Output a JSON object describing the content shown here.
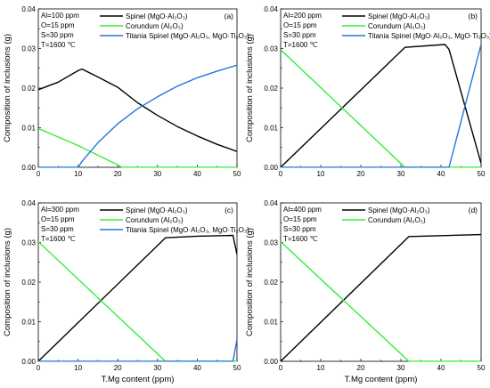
{
  "figure": {
    "xlabel": "T.Mg content (ppm)",
    "ylabel": "Composition of inclusions (g)"
  },
  "chart_data": [
    {
      "type": "line",
      "panel_label": "(a)",
      "conditions": [
        "Al=100 ppm",
        "O=15 ppm",
        "S=30 ppm",
        "T=1600 ℃"
      ],
      "xlim": [
        0,
        50
      ],
      "ylim": [
        0,
        0.04
      ],
      "xticks": [
        0,
        10,
        20,
        30,
        40,
        50
      ],
      "yticks": [
        0.0,
        0.01,
        0.02,
        0.03,
        0.04
      ],
      "ytick_labels": [
        "0.00",
        "0.01",
        "0.02",
        "0.03",
        "0.04"
      ],
      "xlabel": "",
      "ylabel": "Composition of inclusions (g)",
      "legend_position": "top-center",
      "series": [
        {
          "name": "Spinel (MgO·Al₂O₃)",
          "color": "#000000",
          "x": [
            0,
            5,
            10,
            11,
            15,
            20,
            25,
            30,
            35,
            40,
            45,
            50
          ],
          "y": [
            0.0196,
            0.0215,
            0.0244,
            0.0248,
            0.0228,
            0.0202,
            0.0163,
            0.0131,
            0.0103,
            0.0079,
            0.0058,
            0.004
          ]
        },
        {
          "name": "Corundum (Al₂O₃)",
          "color": "#33ee33",
          "x": [
            0,
            10,
            20,
            21,
            50
          ],
          "y": [
            0.0098,
            0.0055,
            0.0006,
            0.0,
            0.0
          ]
        },
        {
          "name": "Titania Spinel (MgO·Al₂O₃, MgO·Ti₂O₃)",
          "color": "#2277dd",
          "x": [
            0,
            10,
            11,
            15,
            20,
            25,
            30,
            35,
            40,
            45,
            50
          ],
          "y": [
            0.0,
            0.0,
            0.0015,
            0.0062,
            0.011,
            0.0148,
            0.0178,
            0.0205,
            0.0226,
            0.0243,
            0.0258
          ]
        }
      ]
    },
    {
      "type": "line",
      "panel_label": "(b)",
      "conditions": [
        "Al=200 ppm",
        "O=15 ppm",
        "S=30 ppm",
        "T=1600 ℃"
      ],
      "xlim": [
        0,
        50
      ],
      "ylim": [
        0,
        0.04
      ],
      "xticks": [
        0,
        10,
        20,
        30,
        40,
        50
      ],
      "yticks": [
        0.0,
        0.01,
        0.02,
        0.03,
        0.04
      ],
      "ytick_labels": [
        "0.00",
        "0.01",
        "0.02",
        "0.03",
        "0.04"
      ],
      "xlabel": "",
      "ylabel": "Composition of inclusions (g)",
      "legend_position": "top-center",
      "series": [
        {
          "name": "Spinel (MgO·Al₂O₃)",
          "color": "#000000",
          "x": [
            0,
            31,
            41,
            42,
            50
          ],
          "y": [
            0.0,
            0.0303,
            0.031,
            0.0298,
            0.001
          ]
        },
        {
          "name": "Corundum (Al₂O₃)",
          "color": "#33ee33",
          "x": [
            0,
            31,
            50
          ],
          "y": [
            0.0297,
            0.0,
            0.0
          ]
        },
        {
          "name": "Titania Spinel (MgO·Al₂O₃, MgO·Ti₂O₃)",
          "color": "#2277dd",
          "x": [
            0,
            42,
            50
          ],
          "y": [
            0.0,
            0.0,
            0.031
          ]
        }
      ]
    },
    {
      "type": "line",
      "panel_label": "(c)",
      "conditions": [
        "Al=300 ppm",
        "O=15 ppm",
        "S=30 ppm",
        "T=1600 ℃"
      ],
      "xlim": [
        0,
        50
      ],
      "ylim": [
        0,
        0.04
      ],
      "xticks": [
        0,
        10,
        20,
        30,
        40,
        50
      ],
      "yticks": [
        0.0,
        0.01,
        0.02,
        0.03,
        0.04
      ],
      "ytick_labels": [
        "0.00",
        "0.01",
        "0.02",
        "0.03",
        "0.04"
      ],
      "xlabel": "T.Mg content (ppm)",
      "ylabel": "Composition of inclusions (g)",
      "legend_position": "top-center",
      "series": [
        {
          "name": "Spinel (MgO·Al₂O₃)",
          "color": "#000000",
          "x": [
            0,
            32,
            40,
            49,
            50
          ],
          "y": [
            0.0,
            0.0312,
            0.0316,
            0.0318,
            0.027
          ]
        },
        {
          "name": "Corundum (Al₂O₃)",
          "color": "#33ee33",
          "x": [
            0,
            32,
            50
          ],
          "y": [
            0.0302,
            0.0,
            0.0
          ]
        },
        {
          "name": "Titania Spinel (MgO·Al₂O₃, MgO·Ti₂O₃)",
          "color": "#2277dd",
          "x": [
            0,
            49,
            50
          ],
          "y": [
            0.0,
            0.0,
            0.0055
          ]
        }
      ]
    },
    {
      "type": "line",
      "panel_label": "(d)",
      "conditions": [
        "Al=400 ppm",
        "O=15 ppm",
        "S=30 ppm",
        "T=1600 ℃"
      ],
      "xlim": [
        0,
        50
      ],
      "ylim": [
        0,
        0.04
      ],
      "xticks": [
        0,
        10,
        20,
        30,
        40,
        50
      ],
      "yticks": [
        0.0,
        0.01,
        0.02,
        0.03,
        0.04
      ],
      "ytick_labels": [
        "0.00",
        "0.01",
        "0.02",
        "0.03",
        "0.04"
      ],
      "xlabel": "T.Mg content (ppm)",
      "ylabel": "Composition of inclusions (g)",
      "legend_position": "top-center",
      "series": [
        {
          "name": "Spinel (MgO·Al₂O₃)",
          "color": "#000000",
          "x": [
            0,
            32,
            50
          ],
          "y": [
            0.0,
            0.0315,
            0.032
          ]
        },
        {
          "name": "Corundum (Al₂O₃)",
          "color": "#33ee33",
          "x": [
            0,
            32,
            50
          ],
          "y": [
            0.0302,
            0.0,
            0.0
          ]
        }
      ]
    }
  ]
}
